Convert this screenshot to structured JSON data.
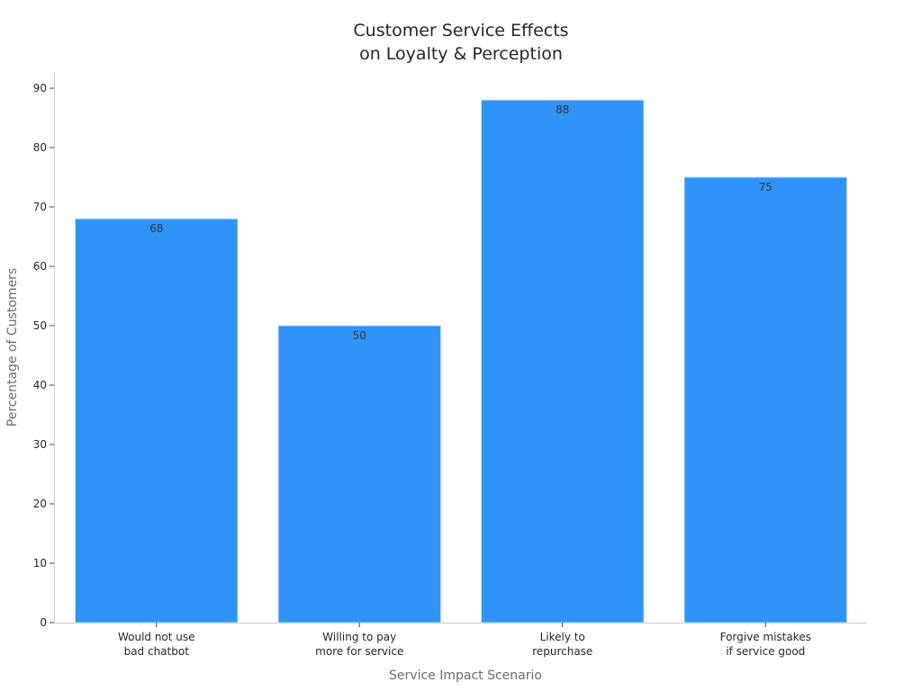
{
  "chart_data": {
    "type": "bar",
    "title": [
      "Customer Service Effects",
      "on Loyalty & Perception"
    ],
    "xlabel": "Service Impact Scenario",
    "ylabel": "Percentage of Customers",
    "categories": [
      [
        "Would not use",
        "bad chatbot"
      ],
      [
        "Willing to pay",
        "more for service"
      ],
      [
        "Likely to",
        "repurchase"
      ],
      [
        "Forgive mistakes",
        "if service good"
      ]
    ],
    "values": [
      68,
      50,
      88,
      75
    ],
    "ylim": [
      0,
      92.5
    ],
    "yticks": [
      0,
      10,
      20,
      30,
      40,
      50,
      60,
      70,
      80,
      90
    ],
    "grid": false,
    "legend": "none",
    "colors": {
      "bar": "#2f93f8",
      "bar_edge": "#b9dafb"
    }
  }
}
